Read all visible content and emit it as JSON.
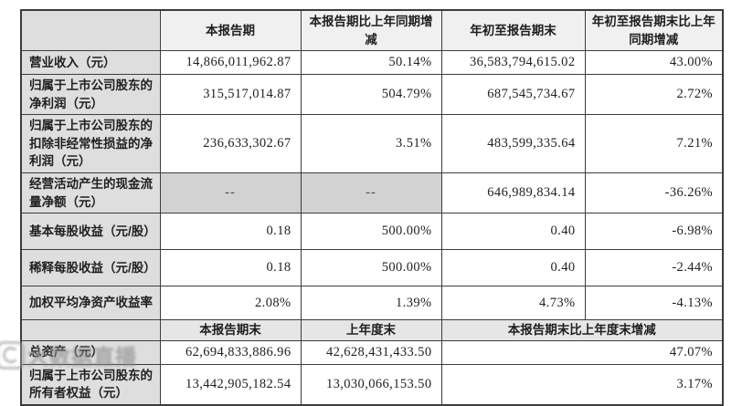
{
  "table": {
    "header": [
      "",
      "本报告期",
      "本报告期比上年同期增减",
      "年初至报告期末",
      "年初至报告期末比上年同期增减"
    ],
    "rows": [
      {
        "label": "营业收入（元）",
        "values": [
          "14,866,011,962.87",
          "50.14%",
          "36,583,794,615.02",
          "43.00%"
        ]
      },
      {
        "label": "归属于上市公司股东的净利润（元）",
        "values": [
          "315,517,014.87",
          "504.79%",
          "687,545,734.67",
          "2.72%"
        ]
      },
      {
        "label": "归属于上市公司股东的扣除非经常性损益的净利润（元）",
        "values": [
          "236,633,302.67",
          "3.51%",
          "483,599,335.64",
          "7.21%"
        ]
      },
      {
        "label": "经营活动产生的现金流量净额（元）",
        "values": [
          "--",
          "--",
          "646,989,834.14",
          "-36.26%"
        ]
      },
      {
        "label": "基本每股收益（元/股）",
        "values": [
          "0.18",
          "500.00%",
          "0.40",
          "-6.98%"
        ]
      },
      {
        "label": "稀释每股收益（元/股）",
        "values": [
          "0.18",
          "500.00%",
          "0.40",
          "-2.44%"
        ]
      },
      {
        "label": "加权平均净资产收益率",
        "values": [
          "2.08%",
          "1.39%",
          "4.73%",
          "-4.13%"
        ]
      }
    ],
    "band_header": [
      "",
      "本报告期末",
      "上年度末",
      "本报告期末比上年度末增减"
    ],
    "band_rows": [
      {
        "label": "总资产（元）",
        "values": [
          "62,694,833,886.96",
          "42,628,431,433.50",
          "47.07%"
        ]
      },
      {
        "label": "归属于上市公司股东的所有者权益（元）",
        "values": [
          "13,442,905,182.54",
          "13,030,066,153.50",
          "3.17%"
        ]
      }
    ]
  },
  "watermark": {
    "text": "大数据直播"
  },
  "colors": {
    "header_bg": "#f0f0f0",
    "label_bg": "#dedede",
    "band_bg": "#e6e6e6",
    "dash_bg": "#d2d2d2",
    "border": "#3c3c3c"
  }
}
